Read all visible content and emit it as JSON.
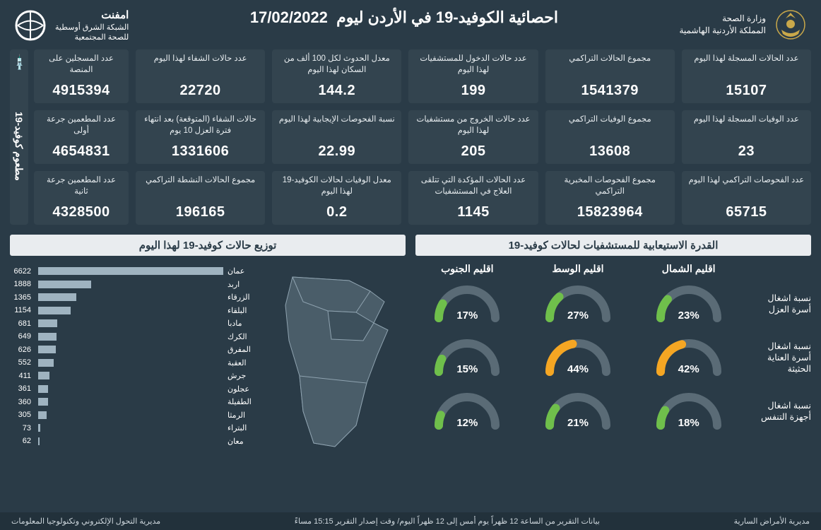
{
  "colors": {
    "bg": "#2a3b47",
    "card": "#33444f",
    "panel_title_bg": "#e9ecef",
    "bar_fill": "#9fb3c0",
    "gauge_track": "#5a6b76",
    "gauge_green": "#6fbf4b",
    "gauge_orange": "#f5a623"
  },
  "header": {
    "ministry_l1": "وزارة الصحة",
    "ministry_l2": "المملكة الأردنية الهاشمية",
    "title": "احصائية الكوفيد-19 في الأردن ليوم",
    "date": "17/02/2022",
    "org_l1": "امفنت",
    "org_l2": "الشبكة الشرق أوسطية",
    "org_l3": "للصحة المجتمعية"
  },
  "stats": [
    {
      "label": "عدد الحالات المسجلة لهذا اليوم",
      "value": "15107"
    },
    {
      "label": "مجموع الحالات التراكمي",
      "value": "1541379"
    },
    {
      "label": "عدد حالات الدخول للمستشفيات لهذا اليوم",
      "value": "199"
    },
    {
      "label": "معدل الحدوث لكل 100 ألف من السكان لهذا اليوم",
      "value": "144.2"
    },
    {
      "label": "عدد حالات الشفاء لهذا اليوم",
      "value": "22720"
    },
    {
      "label": "عدد المسجلين على المنصة",
      "value": "4915394"
    },
    {
      "label": "عدد الوفيات المسجلة لهذا اليوم",
      "value": "23"
    },
    {
      "label": "مجموع الوفيات التراكمي",
      "value": "13608"
    },
    {
      "label": "عدد حالات الخروج من مستشفيات لهذا اليوم",
      "value": "205"
    },
    {
      "label": "نسبة الفحوصات الإيجابية لهذا اليوم",
      "value": "22.99"
    },
    {
      "label": "حالات الشفاء (المتوقعة) بعد انتهاء فترة العزل 10 يوم",
      "value": "1331606"
    },
    {
      "label": "عدد المطعمين جرعة أولى",
      "value": "4654831"
    },
    {
      "label": "عدد الفحوصات التراكمي لهذا اليوم",
      "value": "65715"
    },
    {
      "label": "مجموع الفحوصات المخبرية التراكمي",
      "value": "15823964"
    },
    {
      "label": "عدد الحالات المؤكدة التي تتلقى العلاج في المستشفيات",
      "value": "1145"
    },
    {
      "label": "معدل الوفيات لحالات الكوفيد-19 لهذا اليوم",
      "value": "0.2"
    },
    {
      "label": "مجموع الحالات النشطة التراكمي",
      "value": "196165"
    },
    {
      "label": "عدد المطعمين جرعة ثانية",
      "value": "4328500"
    }
  ],
  "vax_tab": "مطعوم كوفيد-19",
  "capacity": {
    "title": "القدرة الاستيعابية للمستشفيات لحالات كوفيد-19",
    "regions": [
      "اقليم الشمال",
      "اقليم الوسط",
      "اقليم الجنوب"
    ],
    "rows": [
      {
        "label": "نسبة اشغال أسرة العزل",
        "vals": [
          23,
          27,
          17
        ],
        "threshold": 40
      },
      {
        "label": "نسبة اشغال أسرة العناية الحثيثة",
        "vals": [
          42,
          44,
          15
        ],
        "threshold": 40
      },
      {
        "label": "نسبة اشغال أجهزة التنفس",
        "vals": [
          18,
          21,
          12
        ],
        "threshold": 40
      }
    ]
  },
  "distribution": {
    "title": "توزيع حالات كوفيد-19 لهذا اليوم",
    "max": 6622,
    "items": [
      {
        "name": "عمان",
        "value": 6622
      },
      {
        "name": "اربد",
        "value": 1888
      },
      {
        "name": "الزرقاء",
        "value": 1365
      },
      {
        "name": "البلقاء",
        "value": 1154
      },
      {
        "name": "مادبا",
        "value": 681
      },
      {
        "name": "الكرك",
        "value": 649
      },
      {
        "name": "المفرق",
        "value": 626
      },
      {
        "name": "العقبة",
        "value": 552
      },
      {
        "name": "جرش",
        "value": 411
      },
      {
        "name": "عجلون",
        "value": 361
      },
      {
        "name": "الطفيلة",
        "value": 360
      },
      {
        "name": "الرمثا",
        "value": 305
      },
      {
        "name": "البتراء",
        "value": 73
      },
      {
        "name": "معان",
        "value": 62
      }
    ]
  },
  "footer": {
    "right": "مديرية الأمراض السارية",
    "center": "بيانات التقرير من الساعة 12 ظهراً يوم أمس إلى 12 ظهراً اليوم/ وقت إصدار التقرير 15:15 مساءً",
    "left": "مديرية التحول الإلكتروني وتكنولوجيا المعلومات"
  }
}
